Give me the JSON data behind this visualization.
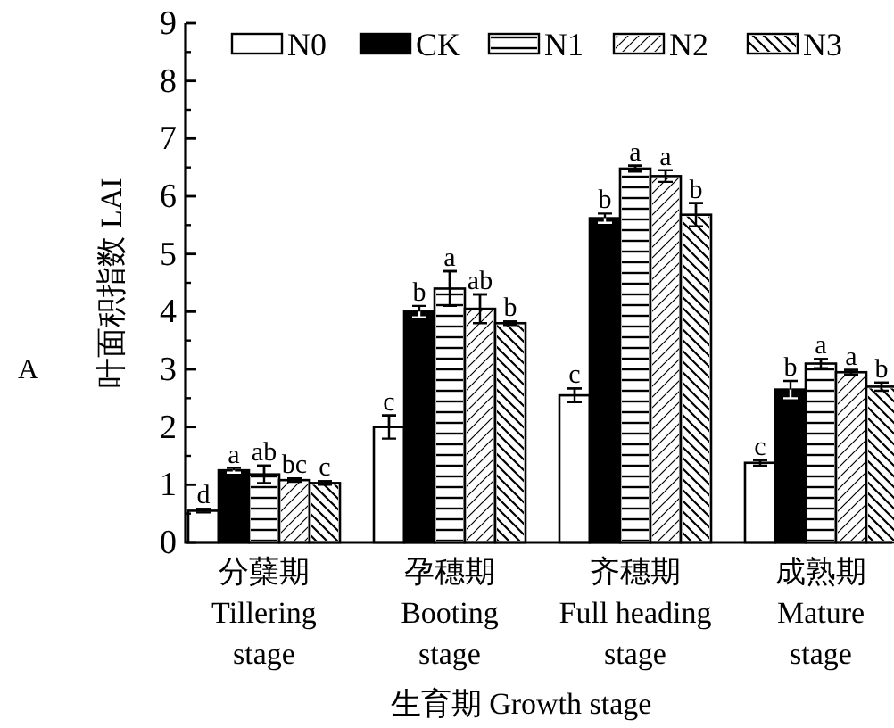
{
  "chart_data": {
    "type": "bar",
    "categories": [
      "分蘖期\nTillering\nstage",
      "孕穗期\nBooting\nstage",
      "齐穗期\nFull heading\nstage",
      "成熟期\nMature\nstage"
    ],
    "xlabel": "生育期 Growth stage",
    "ylabel": "叶面积指数 LAI",
    "ylim": [
      0,
      9
    ],
    "yticks": [
      0,
      1,
      2,
      3,
      4,
      5,
      6,
      7,
      8,
      9
    ],
    "legend": "top",
    "grid": false,
    "annotations": [
      "A"
    ],
    "series": [
      {
        "name": "N0",
        "color": "#ffffff",
        "values": [
          0.55,
          2.0,
          2.55,
          1.38
        ],
        "errors": [
          0.03,
          0.2,
          0.12,
          0.05
        ],
        "value_labels": [
          "d",
          "c",
          "c",
          "c"
        ]
      },
      {
        "name": "CK",
        "color": "#000000",
        "values": [
          1.25,
          4.0,
          5.62,
          2.65
        ],
        "errors": [
          0.04,
          0.1,
          0.08,
          0.15
        ],
        "value_labels": [
          "a",
          "b",
          "b",
          "b"
        ]
      },
      {
        "name": "N1",
        "color": "#ffffff",
        "values": [
          1.18,
          4.4,
          6.48,
          3.1
        ],
        "errors": [
          0.15,
          0.3,
          0.05,
          0.08
        ],
        "value_labels": [
          "ab",
          "a",
          "a",
          "a"
        ]
      },
      {
        "name": "N2",
        "color": "#ffffff",
        "values": [
          1.08,
          4.05,
          6.35,
          2.95
        ],
        "errors": [
          0.03,
          0.25,
          0.1,
          0.04
        ],
        "value_labels": [
          "bc",
          "ab",
          "a",
          "a"
        ]
      },
      {
        "name": "N3",
        "color": "#ffffff",
        "values": [
          1.03,
          3.8,
          5.68,
          2.7
        ],
        "errors": [
          0.03,
          0.03,
          0.2,
          0.07
        ],
        "value_labels": [
          "c",
          "b",
          "b",
          "b"
        ]
      }
    ]
  }
}
